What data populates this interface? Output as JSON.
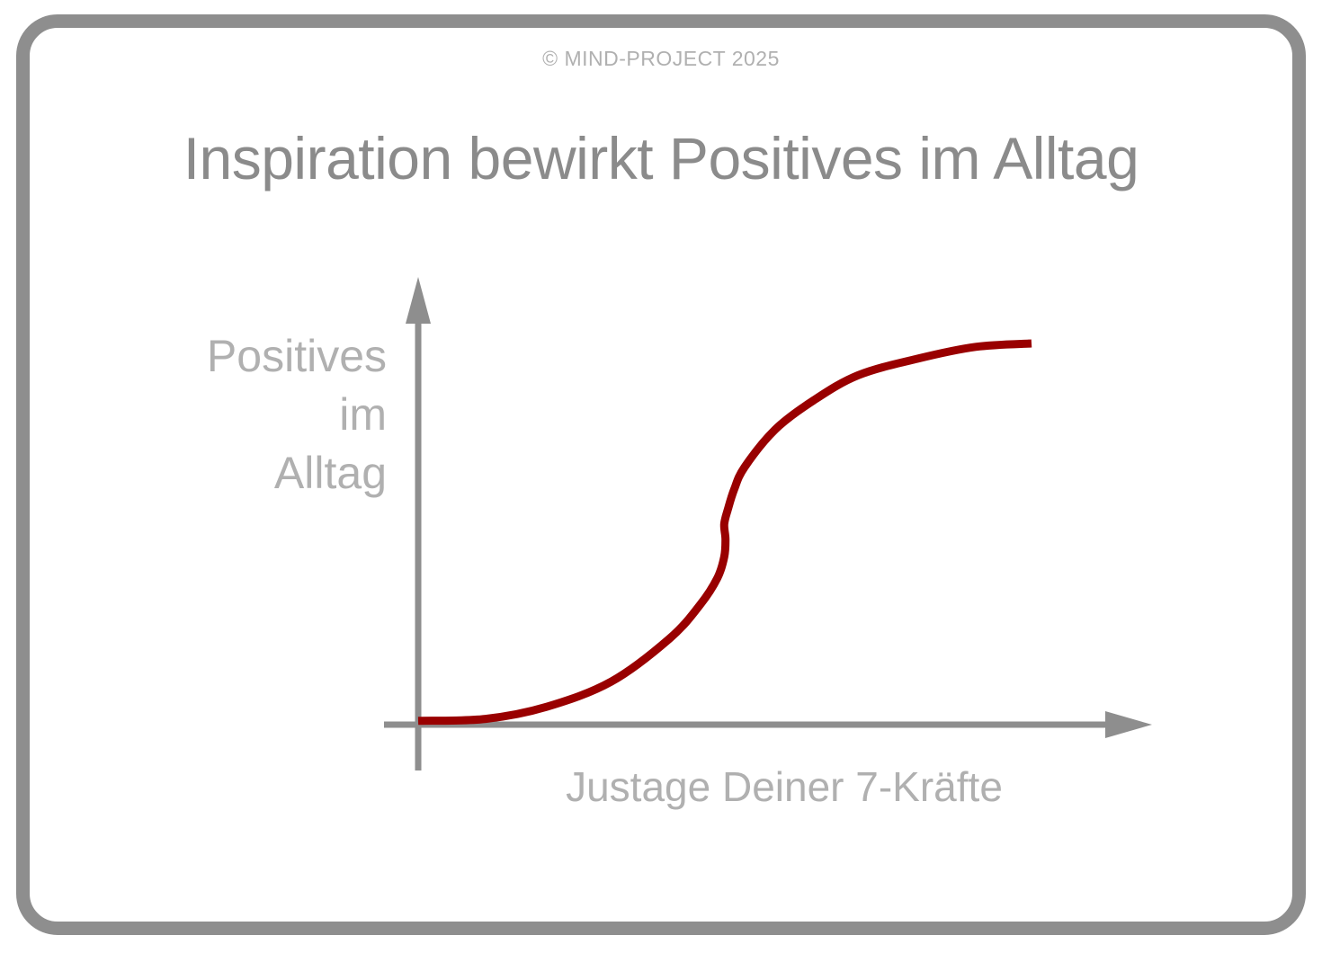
{
  "header": {
    "copyright": "© MIND-PROJECT 2025",
    "title": "Inspiration bewirkt Positives im Alltag"
  },
  "chart_data": {
    "type": "line",
    "title": "Inspiration bewirkt Positives im Alltag",
    "xlabel": "Justage Deiner 7-Kräfte",
    "ylabel": "Positives im Alltag",
    "ylabel_lines": [
      "Positives",
      "im",
      "Alltag"
    ],
    "x_axis": {
      "min": 0,
      "max": 100,
      "tick_labels": "none",
      "arrow": true
    },
    "y_axis": {
      "min": 0,
      "max": 100,
      "tick_labels": "none",
      "arrow": true
    },
    "grid": false,
    "legend": "none",
    "axis_color": "#8e8e8e",
    "label_color": "#b0b0b0",
    "title_color": "#8b8b8b",
    "series": [
      {
        "name": "Positives im Alltag",
        "shape": "double-sigmoid s-curve with mid-rise hesitation",
        "color": "#990000",
        "stroke_width": 9,
        "points": [
          [
            0,
            1
          ],
          [
            11,
            1.5
          ],
          [
            21,
            4.7
          ],
          [
            31.5,
            11.3
          ],
          [
            41,
            22.6
          ],
          [
            46,
            31.5
          ],
          [
            48.8,
            38.5
          ],
          [
            49.9,
            44
          ],
          [
            50.1,
            48.6
          ],
          [
            49.9,
            52.6
          ],
          [
            50.5,
            56.5
          ],
          [
            51.5,
            61.6
          ],
          [
            53.2,
            67.5
          ],
          [
            58.2,
            77.4
          ],
          [
            64.5,
            85.1
          ],
          [
            71.8,
            91.7
          ],
          [
            81.4,
            96
          ],
          [
            90.9,
            99.1
          ],
          [
            100,
            100
          ]
        ]
      }
    ]
  }
}
